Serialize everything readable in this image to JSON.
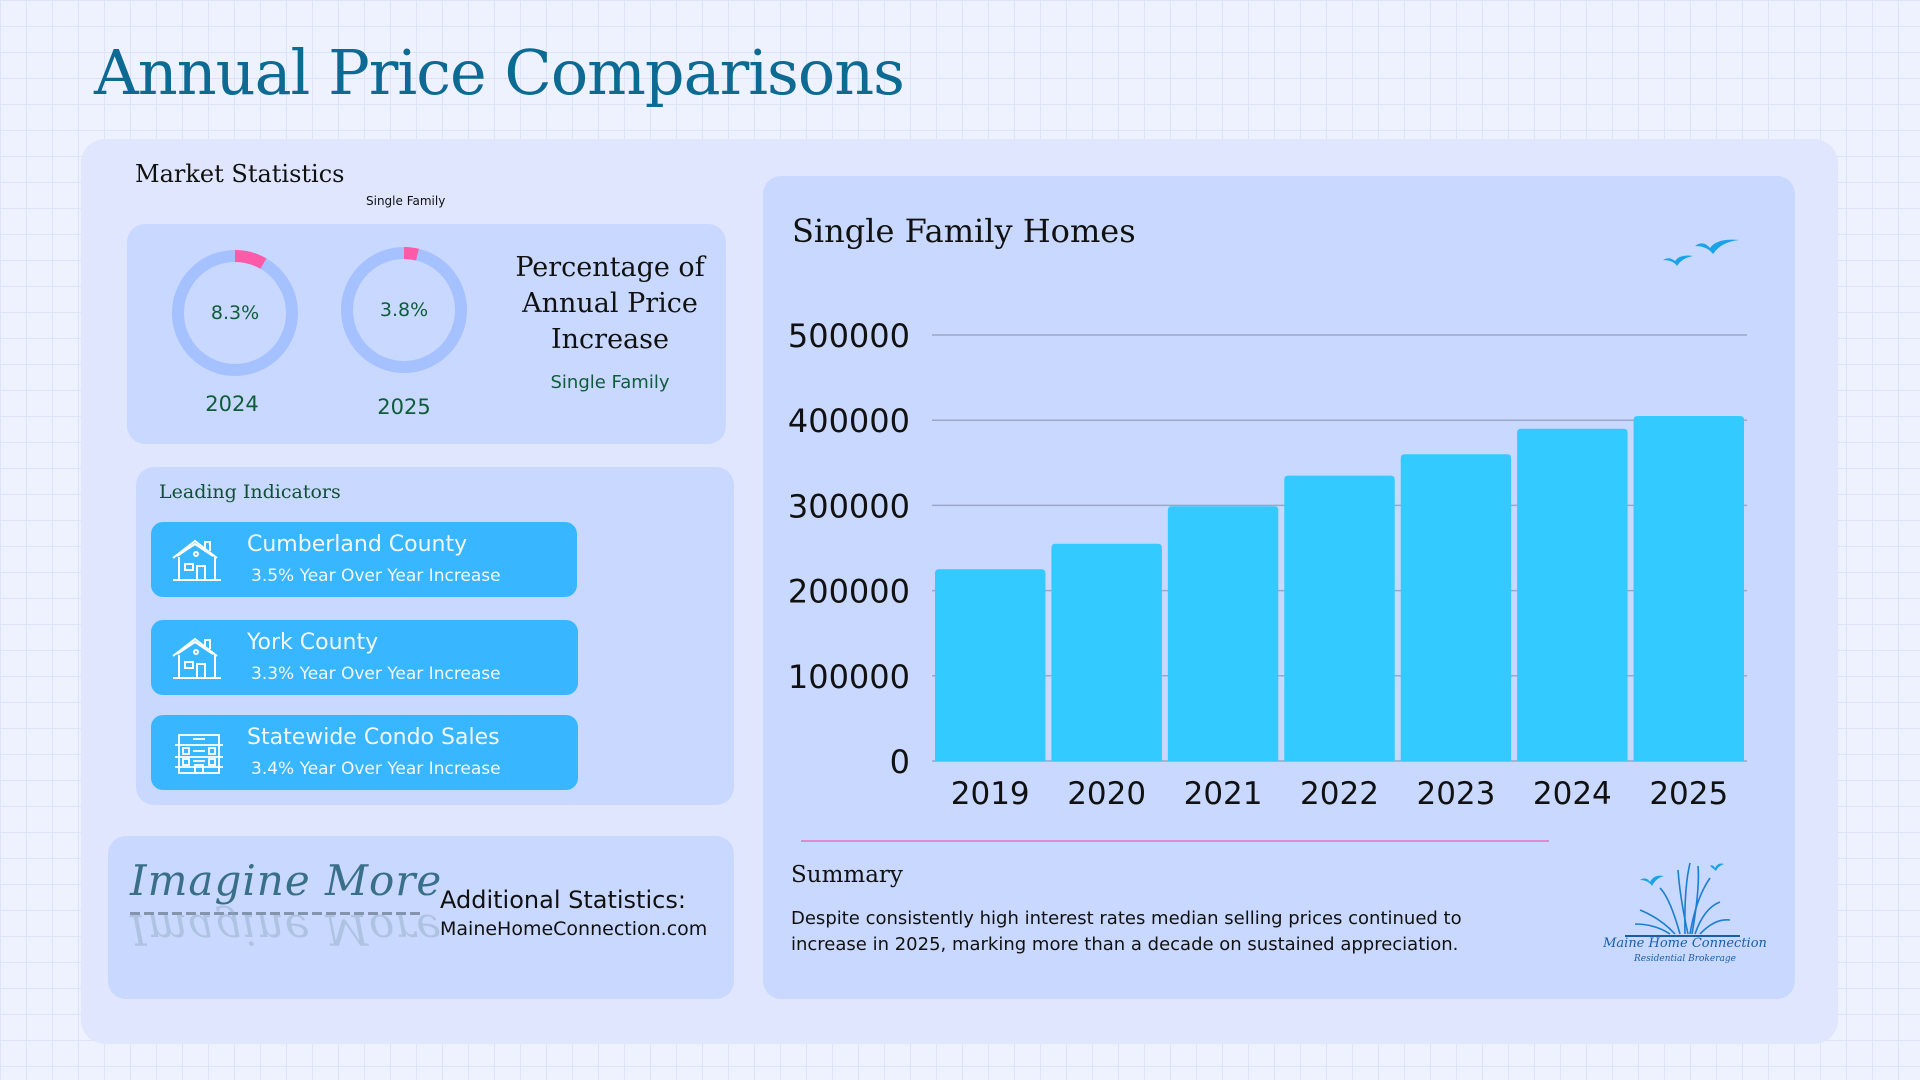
{
  "title": "Annual Price Comparisons",
  "market_stats": {
    "label": "Market Statistics",
    "small_label": "Single Family",
    "donuts": [
      {
        "percent_label": "8.3%",
        "percent": 8.3,
        "year": "2024"
      },
      {
        "percent_label": "3.8%",
        "percent": 3.8,
        "year": "2025"
      }
    ],
    "heading": "Percentage of Annual Price Increase",
    "subheading": "Single Family",
    "colors": {
      "track": "#a6c1ff",
      "fill": "#ff5ba8"
    }
  },
  "leading": {
    "title": "Leading Indicators",
    "items": [
      {
        "name": "Cumberland County",
        "detail": "3.5% Year Over Year Increase",
        "icon": "house-icon"
      },
      {
        "name": "York County",
        "detail": "3.3% Year Over Year Increase",
        "icon": "house-icon"
      },
      {
        "name": "Statewide Condo Sales",
        "detail": "3.4% Year Over Year Increase",
        "icon": "apartment-building-icon"
      }
    ]
  },
  "additional": {
    "logo_text": "Imagine More",
    "title": "Additional Statistics:",
    "url": "MaineHomeConnection.com"
  },
  "chart_data": {
    "type": "bar",
    "title": "Single Family Homes",
    "categories": [
      "2019",
      "2020",
      "2021",
      "2022",
      "2023",
      "2024",
      "2025"
    ],
    "values": [
      225000,
      255000,
      299000,
      335000,
      360000,
      390000,
      405000
    ],
    "ylim": [
      0,
      500000
    ],
    "yticks": [
      "0",
      "100000",
      "200000",
      "300000",
      "400000",
      "500000"
    ],
    "xlabel": "",
    "ylabel": "",
    "grid": true,
    "bar_color": "#33caff"
  },
  "summary": {
    "title": "Summary",
    "text": "Despite consistently high interest rates median selling prices continued to increase in 2025, marking more than a decade on sustained appreciation."
  },
  "brand": {
    "name": "Maine Home Connection",
    "sub": "Residential Brokerage"
  }
}
